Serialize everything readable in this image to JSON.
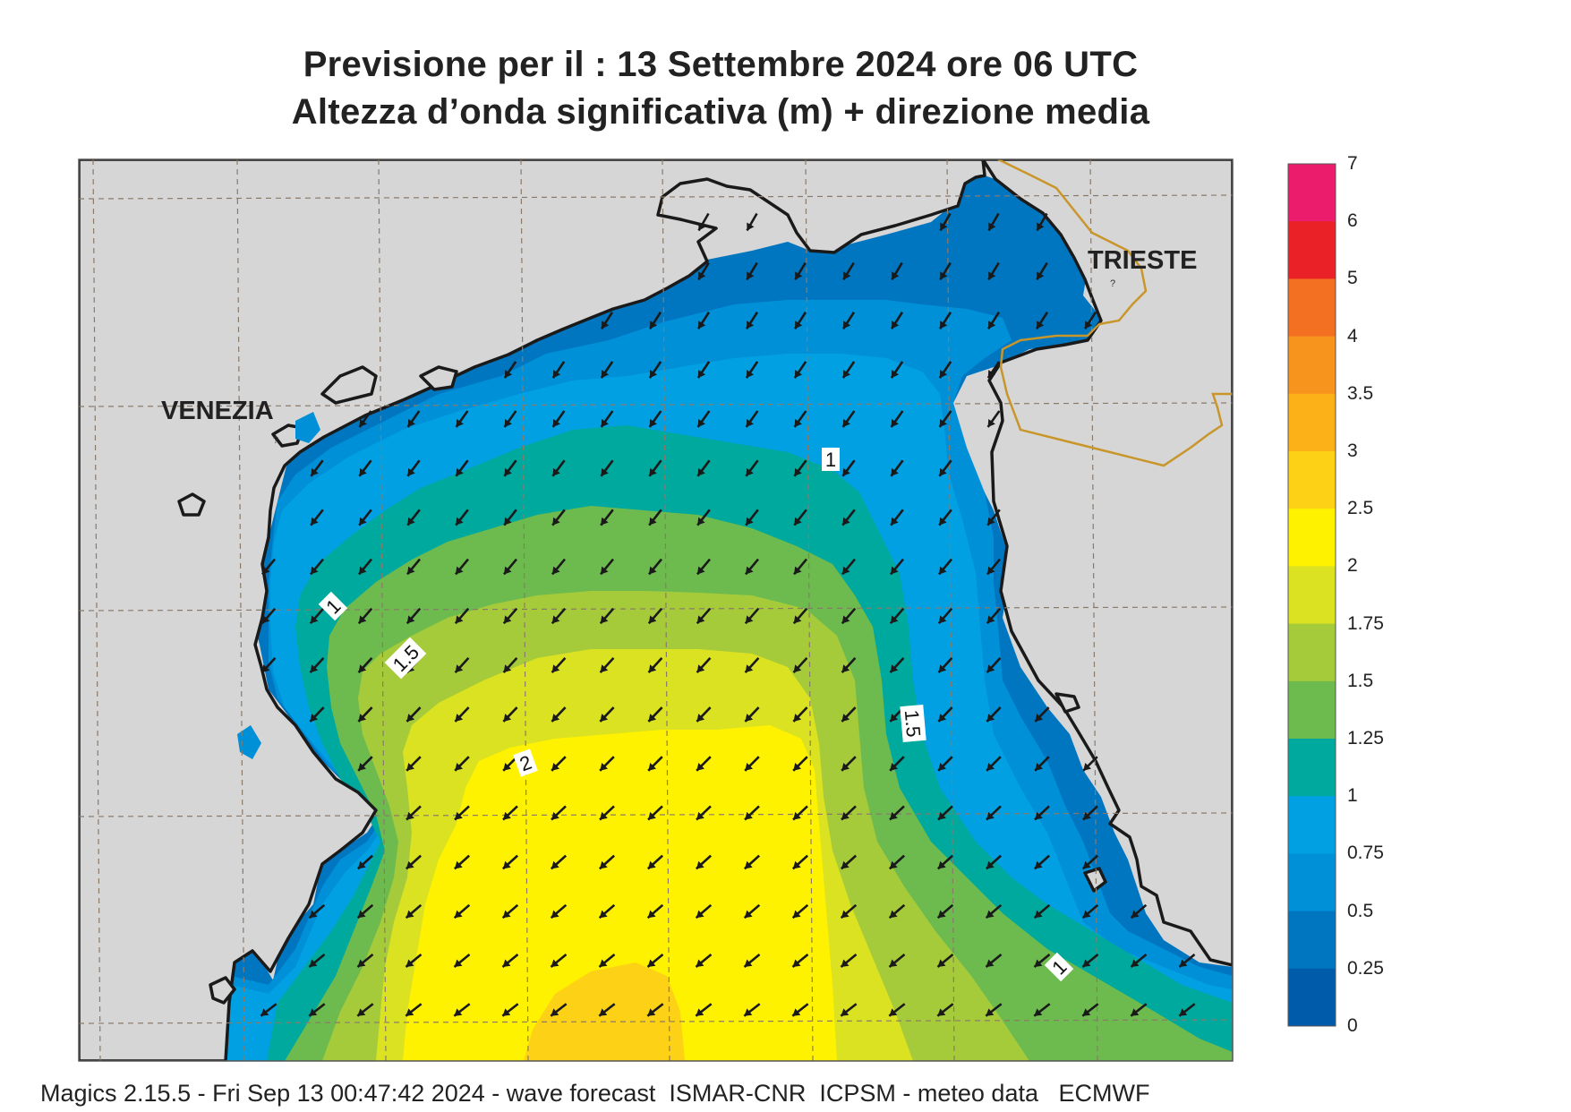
{
  "title": {
    "line1": "Previsione per il  :  13 Settembre 2024   ore 06 UTC",
    "line2": "Altezza d’onda significativa (m) + direzione media"
  },
  "cities": {
    "venezia": "VENEZIA",
    "trieste": "TRIESTE"
  },
  "contour_labels": [
    "1",
    "1.5",
    "2",
    "1.5",
    "1",
    "1"
  ],
  "color_scale": {
    "labels": [
      "7",
      "6",
      "5",
      "4",
      "3.5",
      "3",
      "2.5",
      "2",
      "1.75",
      "1.5",
      "1.25",
      "1",
      "0.75",
      "0.5",
      "0.25",
      "0"
    ],
    "colors": [
      "#ec1c6d",
      "#ea2127",
      "#f36f22",
      "#f7941d",
      "#fbb117",
      "#fcd116",
      "#fff200",
      "#dbe221",
      "#a6cb3a",
      "#6dbb4f",
      "#00a99d",
      "#00a0e3",
      "#0090d8",
      "#0076c0",
      "#005bab"
    ]
  },
  "colors": {
    "land": "#d6d6d6",
    "coast": "#1a1a1a",
    "border": "#c8962a",
    "arrow": "#1a1a1a"
  },
  "footer": "Magics 2.15.5 - Fri Sep 13 00:47:42 2024 - wave forecast  ISMAR-CNR  ICPSM - meteo data   ECMWF"
}
